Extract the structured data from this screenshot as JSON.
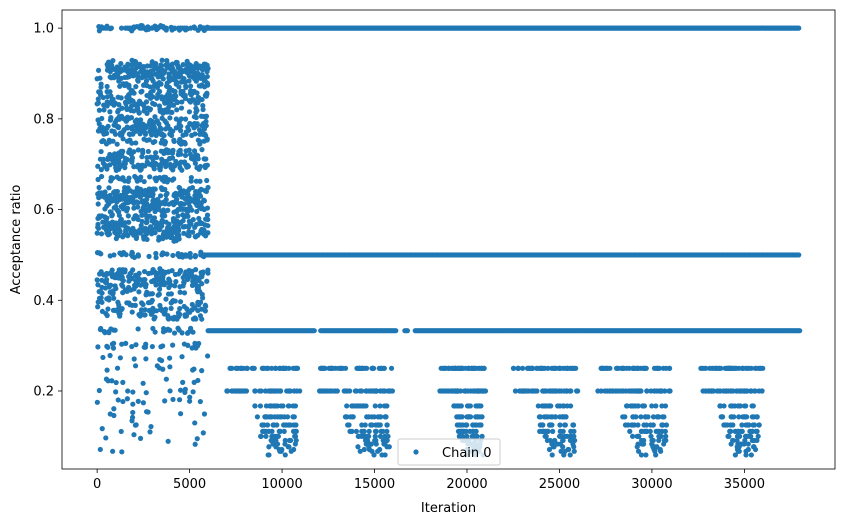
{
  "chart_data": {
    "type": "scatter",
    "xlabel": "Iteration",
    "ylabel": "Acceptance ratio",
    "xlim": [
      -1900,
      39900
    ],
    "ylim": [
      0.028,
      1.04
    ],
    "xticks": [
      0,
      5000,
      10000,
      15000,
      20000,
      25000,
      30000,
      35000
    ],
    "xtick_labels": [
      "0",
      "5000",
      "10000",
      "15000",
      "20000",
      "25000",
      "30000",
      "35000"
    ],
    "yticks": [
      0.2,
      0.4,
      0.6,
      0.8,
      1.0
    ],
    "ytick_labels": [
      "0.2",
      "0.4",
      "0.6",
      "0.8",
      "1.0"
    ],
    "legend": {
      "position": "lower center",
      "entries": [
        "Chain 0"
      ]
    },
    "grid": false,
    "color": "#1f77b4",
    "series": [
      {
        "name": "Chain 0",
        "x_range": [
          0,
          38000
        ],
        "phases": [
          {
            "x_range": [
              0,
              6000
            ],
            "dense_levels": [
              1.0,
              0.917,
              0.909,
              0.9,
              0.889,
              0.875,
              0.857,
              0.846,
              0.833,
              0.818,
              0.8,
              0.786,
              0.778,
              0.769,
              0.75,
              0.727,
              0.714,
              0.7,
              0.692,
              0.667,
              0.643,
              0.636,
              0.625,
              0.615,
              0.6,
              0.583,
              0.571,
              0.556,
              0.545,
              0.5,
              0.462,
              0.455,
              0.444,
              0.429,
              0.417,
              0.4,
              0.385,
              0.375,
              0.364,
              0.333,
              0.3,
              0.273,
              0.25,
              0.222,
              0.2,
              0.182
            ],
            "sparse_range": [
              0.06,
              0.93
            ]
          },
          {
            "x_range": [
              6000,
              38000
            ],
            "dense_levels": [
              1.0,
              0.5,
              0.333
            ],
            "band_levels": [
              0.25,
              0.2,
              0.167,
              0.143,
              0.125,
              0.111,
              0.1,
              0.091,
              0.083,
              0.077,
              0.071,
              0.067,
              0.059
            ],
            "band_x_ranges": [
              [
                7000,
                11000
              ],
              [
                12000,
                16000
              ],
              [
                18500,
                21000
              ],
              [
                22500,
                26000
              ],
              [
                27000,
                31000
              ],
              [
                32500,
                36000
              ]
            ]
          }
        ]
      }
    ]
  }
}
